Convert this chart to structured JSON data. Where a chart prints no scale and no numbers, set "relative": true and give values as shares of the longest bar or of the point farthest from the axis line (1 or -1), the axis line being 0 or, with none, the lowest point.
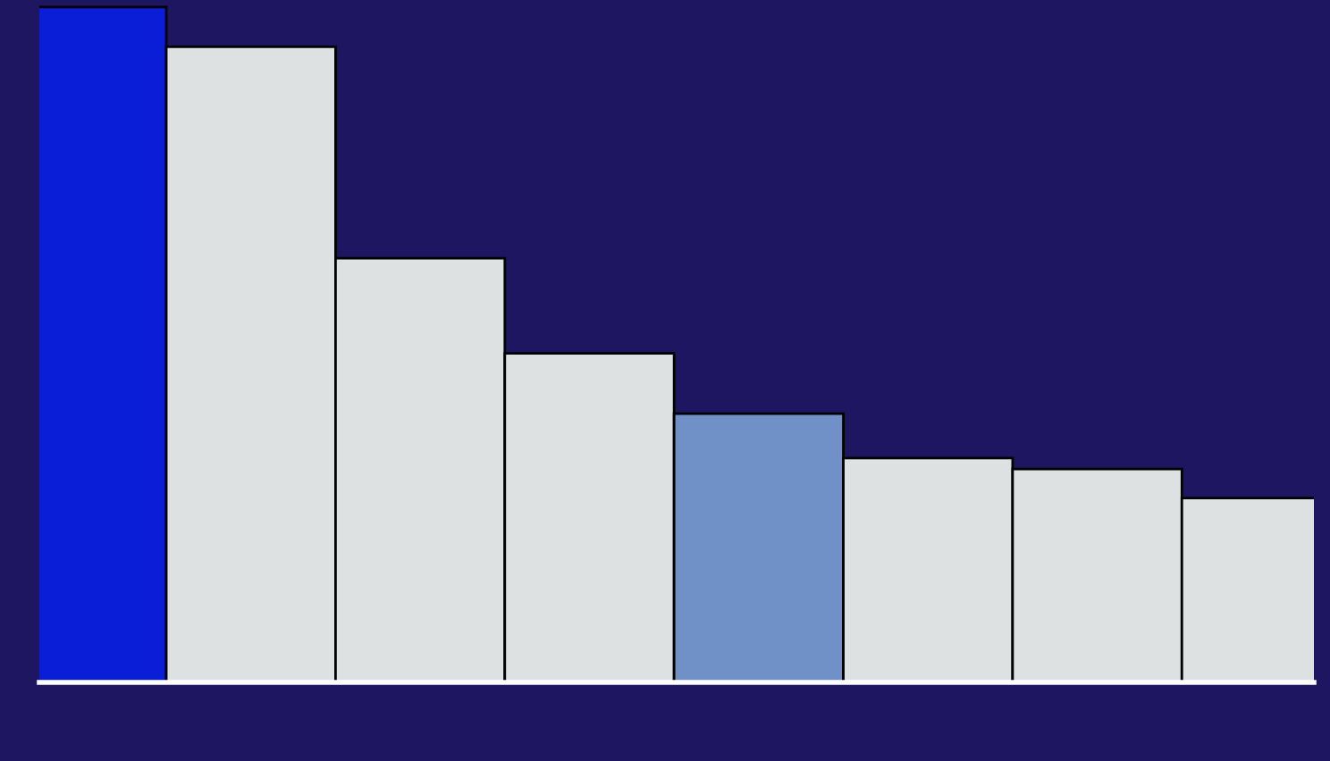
{
  "chart_data": {
    "type": "bar",
    "relative": true,
    "categories": [
      null,
      null,
      null,
      null,
      null,
      null,
      null,
      null
    ],
    "values": [
      1,
      0.941,
      0.628,
      0.487,
      0.398,
      0.332,
      0.316,
      0.273
    ],
    "colors": [
      "#0a1ed8",
      "#dde1e1",
      "#dde1e1",
      "#dde1e1",
      "#7090c8",
      "#dde1e1",
      "#dde1e1",
      "#dde1e1"
    ],
    "grid": false,
    "legend": false
  }
}
